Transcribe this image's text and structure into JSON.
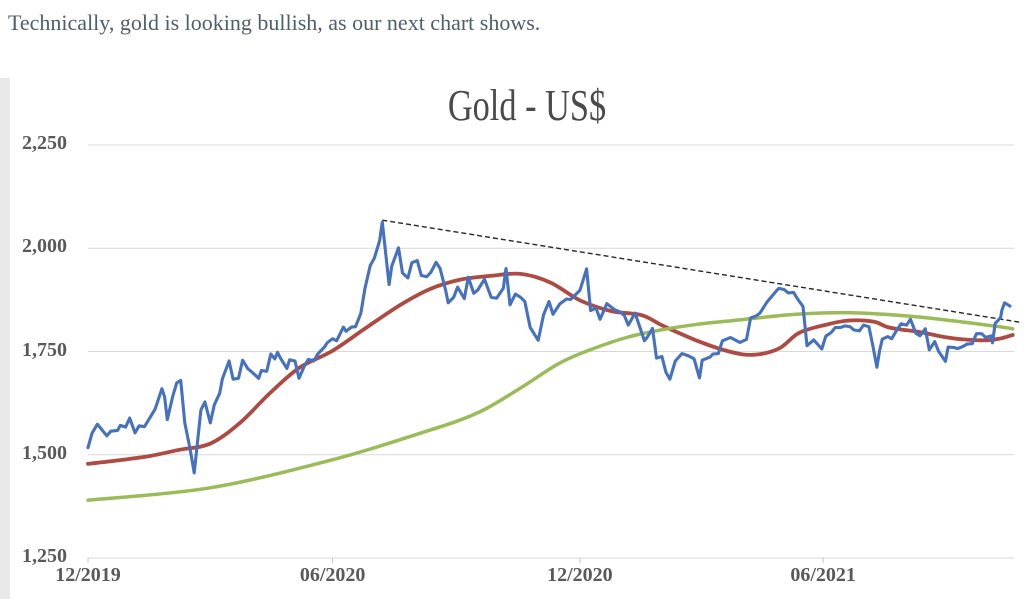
{
  "heading": {
    "text": "Technically, gold is looking bullish, as our next chart shows."
  },
  "chart_data": {
    "type": "line",
    "title": "Gold - US$",
    "grid_color": "#d9d9d9",
    "axis_color": "#c9c9c9",
    "x_axis": {
      "start_date": "2019-12-31",
      "end_date": "2021-11-19",
      "ticks": [
        {
          "label": "12/2019",
          "date": "2019-12-31"
        },
        {
          "label": "06/2020",
          "date": "2020-06-30"
        },
        {
          "label": "12/2020",
          "date": "2020-12-31"
        },
        {
          "label": "06/2021",
          "date": "2021-06-30"
        }
      ]
    },
    "y_axis": {
      "min": 1250,
      "max": 2250,
      "ticks": [
        {
          "label": "2,250",
          "value": 2250
        },
        {
          "label": "2,000",
          "value": 2000
        },
        {
          "label": "1,750",
          "value": 1750
        },
        {
          "label": "1,500",
          "value": 1500
        },
        {
          "label": "1,250",
          "value": 1250
        }
      ]
    },
    "series": [
      {
        "name": "gold_daily",
        "color": "#4571bf",
        "width": 3.1,
        "smooth": false,
        "points": [
          [
            "2019-12-31",
            1517
          ],
          [
            "2020-01-03",
            1552
          ],
          [
            "2020-01-07",
            1574
          ],
          [
            "2020-01-10",
            1562
          ],
          [
            "2020-01-14",
            1546
          ],
          [
            "2020-01-17",
            1557
          ],
          [
            "2020-01-22",
            1559
          ],
          [
            "2020-01-24",
            1571
          ],
          [
            "2020-01-28",
            1567
          ],
          [
            "2020-01-31",
            1589
          ],
          [
            "2020-02-04",
            1553
          ],
          [
            "2020-02-07",
            1570
          ],
          [
            "2020-02-11",
            1568
          ],
          [
            "2020-02-14",
            1584
          ],
          [
            "2020-02-19",
            1611
          ],
          [
            "2020-02-24",
            1660
          ],
          [
            "2020-02-26",
            1640
          ],
          [
            "2020-02-28",
            1585
          ],
          [
            "2020-03-03",
            1641
          ],
          [
            "2020-03-06",
            1674
          ],
          [
            "2020-03-09",
            1680
          ],
          [
            "2020-03-12",
            1577
          ],
          [
            "2020-03-16",
            1514
          ],
          [
            "2020-03-19",
            1456
          ],
          [
            "2020-03-24",
            1608
          ],
          [
            "2020-03-27",
            1628
          ],
          [
            "2020-03-31",
            1577
          ],
          [
            "2020-04-03",
            1621
          ],
          [
            "2020-04-07",
            1649
          ],
          [
            "2020-04-09",
            1684
          ],
          [
            "2020-04-14",
            1727
          ],
          [
            "2020-04-17",
            1683
          ],
          [
            "2020-04-21",
            1685
          ],
          [
            "2020-04-24",
            1729
          ],
          [
            "2020-04-28",
            1708
          ],
          [
            "2020-05-01",
            1700
          ],
          [
            "2020-05-06",
            1685
          ],
          [
            "2020-05-08",
            1704
          ],
          [
            "2020-05-12",
            1702
          ],
          [
            "2020-05-15",
            1744
          ],
          [
            "2020-05-18",
            1732
          ],
          [
            "2020-05-20",
            1748
          ],
          [
            "2020-05-22",
            1735
          ],
          [
            "2020-05-27",
            1709
          ],
          [
            "2020-05-29",
            1730
          ],
          [
            "2020-06-02",
            1727
          ],
          [
            "2020-06-05",
            1685
          ],
          [
            "2020-06-09",
            1715
          ],
          [
            "2020-06-12",
            1731
          ],
          [
            "2020-06-16",
            1727
          ],
          [
            "2020-06-19",
            1744
          ],
          [
            "2020-06-24",
            1761
          ],
          [
            "2020-06-26",
            1771
          ],
          [
            "2020-06-30",
            1781
          ],
          [
            "2020-07-03",
            1776
          ],
          [
            "2020-07-08",
            1809
          ],
          [
            "2020-07-10",
            1799
          ],
          [
            "2020-07-14",
            1809
          ],
          [
            "2020-07-17",
            1810
          ],
          [
            "2020-07-21",
            1842
          ],
          [
            "2020-07-24",
            1902
          ],
          [
            "2020-07-28",
            1958
          ],
          [
            "2020-07-31",
            1976
          ],
          [
            "2020-08-04",
            2018
          ],
          [
            "2020-08-06",
            2063
          ],
          [
            "2020-08-11",
            1912
          ],
          [
            "2020-08-13",
            1956
          ],
          [
            "2020-08-18",
            2001
          ],
          [
            "2020-08-21",
            1940
          ],
          [
            "2020-08-25",
            1928
          ],
          [
            "2020-08-28",
            1965
          ],
          [
            "2020-09-01",
            1970
          ],
          [
            "2020-09-04",
            1934
          ],
          [
            "2020-09-08",
            1931
          ],
          [
            "2020-09-11",
            1941
          ],
          [
            "2020-09-15",
            1966
          ],
          [
            "2020-09-18",
            1951
          ],
          [
            "2020-09-22",
            1900
          ],
          [
            "2020-09-24",
            1868
          ],
          [
            "2020-09-28",
            1881
          ],
          [
            "2020-10-01",
            1906
          ],
          [
            "2020-10-06",
            1878
          ],
          [
            "2020-10-09",
            1930
          ],
          [
            "2020-10-13",
            1891
          ],
          [
            "2020-10-16",
            1899
          ],
          [
            "2020-10-21",
            1925
          ],
          [
            "2020-10-26",
            1881
          ],
          [
            "2020-10-30",
            1879
          ],
          [
            "2020-11-04",
            1903
          ],
          [
            "2020-11-06",
            1951
          ],
          [
            "2020-11-09",
            1863
          ],
          [
            "2020-11-13",
            1889
          ],
          [
            "2020-11-17",
            1881
          ],
          [
            "2020-11-20",
            1871
          ],
          [
            "2020-11-24",
            1808
          ],
          [
            "2020-11-30",
            1777
          ],
          [
            "2020-12-04",
            1839
          ],
          [
            "2020-12-08",
            1871
          ],
          [
            "2020-12-11",
            1840
          ],
          [
            "2020-12-16",
            1865
          ],
          [
            "2020-12-21",
            1877
          ],
          [
            "2020-12-24",
            1876
          ],
          [
            "2020-12-31",
            1898
          ],
          [
            "2021-01-05",
            1950
          ],
          [
            "2021-01-08",
            1849
          ],
          [
            "2021-01-12",
            1855
          ],
          [
            "2021-01-15",
            1828
          ],
          [
            "2021-01-20",
            1866
          ],
          [
            "2021-01-26",
            1851
          ],
          [
            "2021-01-29",
            1847
          ],
          [
            "2021-02-02",
            1838
          ],
          [
            "2021-02-05",
            1814
          ],
          [
            "2021-02-10",
            1843
          ],
          [
            "2021-02-12",
            1824
          ],
          [
            "2021-02-17",
            1776
          ],
          [
            "2021-02-19",
            1784
          ],
          [
            "2021-02-23",
            1806
          ],
          [
            "2021-02-26",
            1734
          ],
          [
            "2021-03-02",
            1738
          ],
          [
            "2021-03-05",
            1700
          ],
          [
            "2021-03-08",
            1683
          ],
          [
            "2021-03-12",
            1727
          ],
          [
            "2021-03-17",
            1745
          ],
          [
            "2021-03-22",
            1739
          ],
          [
            "2021-03-26",
            1732
          ],
          [
            "2021-03-30",
            1686
          ],
          [
            "2021-04-01",
            1729
          ],
          [
            "2021-04-07",
            1737
          ],
          [
            "2021-04-09",
            1744
          ],
          [
            "2021-04-13",
            1745
          ],
          [
            "2021-04-16",
            1776
          ],
          [
            "2021-04-22",
            1784
          ],
          [
            "2021-04-29",
            1772
          ],
          [
            "2021-05-04",
            1779
          ],
          [
            "2021-05-07",
            1831
          ],
          [
            "2021-05-11",
            1836
          ],
          [
            "2021-05-14",
            1843
          ],
          [
            "2021-05-19",
            1869
          ],
          [
            "2021-05-26",
            1896
          ],
          [
            "2021-05-28",
            1903
          ],
          [
            "2021-06-01",
            1900
          ],
          [
            "2021-06-04",
            1892
          ],
          [
            "2021-06-08",
            1893
          ],
          [
            "2021-06-11",
            1877
          ],
          [
            "2021-06-15",
            1859
          ],
          [
            "2021-06-18",
            1764
          ],
          [
            "2021-06-23",
            1778
          ],
          [
            "2021-06-29",
            1756
          ],
          [
            "2021-07-02",
            1787
          ],
          [
            "2021-07-06",
            1796
          ],
          [
            "2021-07-09",
            1808
          ],
          [
            "2021-07-13",
            1808
          ],
          [
            "2021-07-16",
            1812
          ],
          [
            "2021-07-20",
            1810
          ],
          [
            "2021-07-23",
            1802
          ],
          [
            "2021-07-27",
            1800
          ],
          [
            "2021-07-30",
            1814
          ],
          [
            "2021-08-03",
            1810
          ],
          [
            "2021-08-06",
            1763
          ],
          [
            "2021-08-09",
            1712
          ],
          [
            "2021-08-11",
            1752
          ],
          [
            "2021-08-13",
            1780
          ],
          [
            "2021-08-17",
            1786
          ],
          [
            "2021-08-20",
            1781
          ],
          [
            "2021-08-24",
            1803
          ],
          [
            "2021-08-27",
            1817
          ],
          [
            "2021-08-31",
            1814
          ],
          [
            "2021-09-03",
            1828
          ],
          [
            "2021-09-07",
            1794
          ],
          [
            "2021-09-10",
            1788
          ],
          [
            "2021-09-14",
            1805
          ],
          [
            "2021-09-17",
            1754
          ],
          [
            "2021-09-21",
            1774
          ],
          [
            "2021-09-24",
            1750
          ],
          [
            "2021-09-29",
            1726
          ],
          [
            "2021-10-01",
            1761
          ],
          [
            "2021-10-05",
            1760
          ],
          [
            "2021-10-08",
            1757
          ],
          [
            "2021-10-12",
            1762
          ],
          [
            "2021-10-15",
            1768
          ],
          [
            "2021-10-19",
            1769
          ],
          [
            "2021-10-22",
            1793
          ],
          [
            "2021-10-26",
            1793
          ],
          [
            "2021-10-29",
            1784
          ],
          [
            "2021-11-02",
            1788
          ],
          [
            "2021-11-03",
            1771
          ],
          [
            "2021-11-05",
            1818
          ],
          [
            "2021-11-09",
            1832
          ],
          [
            "2021-11-10",
            1850
          ],
          [
            "2021-11-12",
            1868
          ],
          [
            "2021-11-16",
            1860
          ]
        ]
      },
      {
        "name": "moving_average_red",
        "color": "#ad4a42",
        "width": 3.8,
        "smooth": true,
        "points": [
          [
            "2019-12-31",
            1478
          ],
          [
            "2020-01-24",
            1487
          ],
          [
            "2020-02-15",
            1497
          ],
          [
            "2020-03-08",
            1512
          ],
          [
            "2020-03-31",
            1527
          ],
          [
            "2020-04-22",
            1577
          ],
          [
            "2020-05-14",
            1648
          ],
          [
            "2020-06-05",
            1710
          ],
          [
            "2020-06-30",
            1752
          ],
          [
            "2020-07-23",
            1803
          ],
          [
            "2020-08-19",
            1862
          ],
          [
            "2020-09-11",
            1902
          ],
          [
            "2020-10-03",
            1924
          ],
          [
            "2020-10-25",
            1933
          ],
          [
            "2020-11-17",
            1938
          ],
          [
            "2020-12-09",
            1917
          ],
          [
            "2020-12-31",
            1874
          ],
          [
            "2021-01-23",
            1848
          ],
          [
            "2021-02-15",
            1838
          ],
          [
            "2021-03-03",
            1812
          ],
          [
            "2021-03-29",
            1775
          ],
          [
            "2021-04-21",
            1750
          ],
          [
            "2021-05-09",
            1742
          ],
          [
            "2021-05-28",
            1757
          ],
          [
            "2021-06-12",
            1795
          ],
          [
            "2021-07-01",
            1814
          ],
          [
            "2021-07-19",
            1825
          ],
          [
            "2021-08-07",
            1822
          ],
          [
            "2021-08-18",
            1808
          ],
          [
            "2021-09-10",
            1797
          ],
          [
            "2021-09-25",
            1787
          ],
          [
            "2021-10-10",
            1780
          ],
          [
            "2021-10-28",
            1777
          ],
          [
            "2021-11-08",
            1781
          ],
          [
            "2021-11-18",
            1790
          ]
        ]
      },
      {
        "name": "moving_average_green",
        "color": "#9bbb59",
        "width": 3.5,
        "smooth": true,
        "points": [
          [
            "2019-12-31",
            1390
          ],
          [
            "2020-03-31",
            1420
          ],
          [
            "2020-06-30",
            1488
          ],
          [
            "2020-09-03",
            1552
          ],
          [
            "2020-10-15",
            1600
          ],
          [
            "2020-11-16",
            1660
          ],
          [
            "2020-12-16",
            1722
          ],
          [
            "2021-01-10",
            1757
          ],
          [
            "2021-02-05",
            1785
          ],
          [
            "2021-03-01",
            1802
          ],
          [
            "2021-03-29",
            1816
          ],
          [
            "2021-04-30",
            1827
          ],
          [
            "2021-06-10",
            1840
          ],
          [
            "2021-07-20",
            1844
          ],
          [
            "2021-09-01",
            1836
          ],
          [
            "2021-10-05",
            1824
          ],
          [
            "2021-11-08",
            1810
          ],
          [
            "2021-11-18",
            1805
          ]
        ]
      }
    ],
    "trendline": {
      "name": "downtrend_resistance_dashed",
      "color": "#262626",
      "width": 1.4,
      "dash": [
        5,
        3
      ],
      "points": [
        [
          "2020-08-06",
          2068
        ],
        [
          "2021-11-25",
          1820
        ]
      ]
    }
  }
}
